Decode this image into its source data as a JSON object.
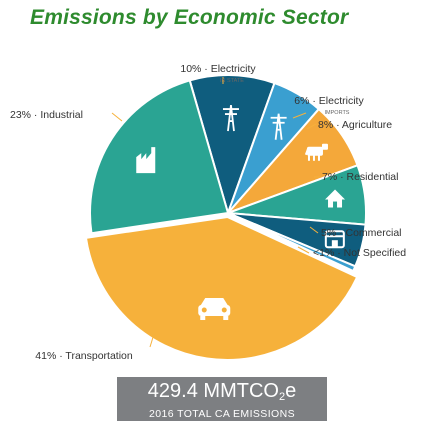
{
  "title": "Emissions by Economic Sector",
  "total": {
    "value": "429.4",
    "unit_prefix": "MMTCO",
    "unit_sub": "2",
    "unit_suffix": "e",
    "caption": "2016 TOTAL CA EMISSIONS"
  },
  "colors": {
    "yellow": "#f6b13b",
    "teal": "#2aa493",
    "navy": "#0f5d7e",
    "blue": "#3a9fd0",
    "orange": "#f4a83a",
    "green": "#2aa493",
    "callout": "#f6b13b"
  },
  "chart_data": {
    "type": "pie",
    "title": "Emissions by Economic Sector",
    "slices": [
      {
        "name": "Electricity",
        "sub": "IN STATE",
        "percent_label": "10%",
        "value": 10,
        "color": "#0f5d7e",
        "icon": "power-tower-icon"
      },
      {
        "name": "Electricity",
        "sub": "IMPORTS",
        "percent_label": "6%",
        "value": 6,
        "color": "#3a9fd0",
        "icon": "power-tower-icon"
      },
      {
        "name": "Agriculture",
        "sub": "",
        "percent_label": "8%",
        "value": 8,
        "color": "#f4a83a",
        "icon": "cow-icon"
      },
      {
        "name": "Residential",
        "sub": "",
        "percent_label": "7%",
        "value": 7,
        "color": "#2aa493",
        "icon": "house-icon"
      },
      {
        "name": "Commercial",
        "sub": "",
        "percent_label": "5%",
        "value": 5,
        "color": "#0f5d7e",
        "icon": "store-icon"
      },
      {
        "name": "Not Specified",
        "sub": "",
        "percent_label": "<1%",
        "value": 0.6,
        "color": "#3a9fd0",
        "icon": ""
      },
      {
        "name": "Transportation",
        "sub": "",
        "percent_label": "41%",
        "value": 41,
        "color": "#f6b13b",
        "icon": "car-icon"
      },
      {
        "name": "Industrial",
        "sub": "",
        "percent_label": "23%",
        "value": 23,
        "color": "#2aa493",
        "icon": "factory-icon"
      }
    ],
    "total": 429.4,
    "unit": "MMTCO2e"
  }
}
